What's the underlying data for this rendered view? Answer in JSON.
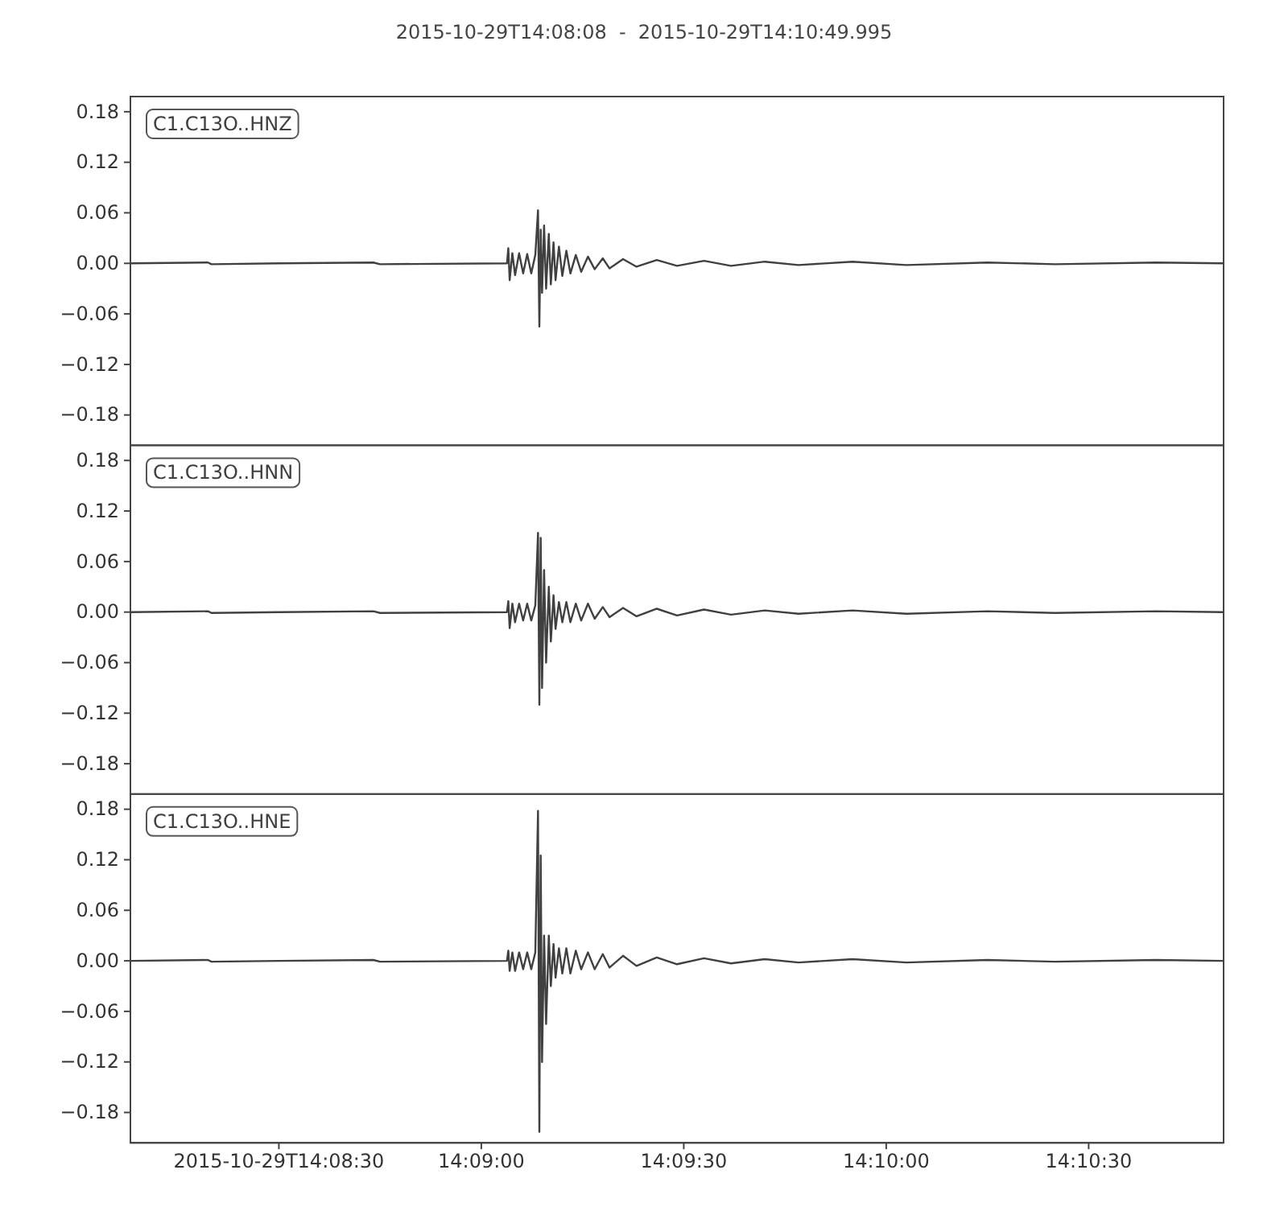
{
  "chart_data": [
    {
      "type": "line",
      "title": "2015-10-29T14:08:08  -  2015-10-29T14:10:49.995",
      "legend": "top left",
      "tick_labels": "y",
      "x": [
        "2015-10-29T14:08:08.000",
        "2015-10-29T14:08:19.500",
        "2015-10-29T14:08:20.000",
        "2015-10-29T14:08:30.000",
        "2015-10-29T14:08:44.000",
        "2015-10-29T14:08:45.000",
        "2015-10-29T14:09:03.800",
        "2015-10-29T14:09:04.000",
        "2015-10-29T14:09:04.200",
        "2015-10-29T14:09:04.600",
        "2015-10-29T14:09:05.000",
        "2015-10-29T14:09:05.600",
        "2015-10-29T14:09:06.200",
        "2015-10-29T14:09:06.800",
        "2015-10-29T14:09:07.400",
        "2015-10-29T14:09:08.000",
        "2015-10-29T14:09:08.400",
        "2015-10-29T14:09:08.600",
        "2015-10-29T14:09:08.800",
        "2015-10-29T14:09:09.000",
        "2015-10-29T14:09:09.300",
        "2015-10-29T14:09:09.600",
        "2015-10-29T14:09:10.000",
        "2015-10-29T14:09:10.300",
        "2015-10-29T14:09:10.700",
        "2015-10-29T14:09:11.000",
        "2015-10-29T14:09:11.500",
        "2015-10-29T14:09:12.000",
        "2015-10-29T14:09:12.600",
        "2015-10-29T14:09:13.200",
        "2015-10-29T14:09:14.000",
        "2015-10-29T14:09:14.800",
        "2015-10-29T14:09:15.800",
        "2015-10-29T14:09:16.800",
        "2015-10-29T14:09:18.000",
        "2015-10-29T14:09:19.000",
        "2015-10-29T14:09:21.000",
        "2015-10-29T14:09:23.000",
        "2015-10-29T14:09:26.000",
        "2015-10-29T14:09:29.000",
        "2015-10-29T14:09:33.000",
        "2015-10-29T14:09:37.000",
        "2015-10-29T14:09:42.000",
        "2015-10-29T14:09:47.000",
        "2015-10-29T14:09:55.000",
        "2015-10-29T14:10:03.000",
        "2015-10-29T14:10:15.000",
        "2015-10-29T14:10:25.000",
        "2015-10-29T14:10:40.000",
        "2015-10-29T14:10:49.995"
      ],
      "series": [
        {
          "name": "C1.C13O..HNZ",
          "color": "#404040",
          "values": [
            0,
            0.001,
            -0.001,
            0,
            0.001,
            -0.001,
            0,
            0.018,
            -0.02,
            0.012,
            -0.014,
            0.012,
            -0.012,
            0.011,
            -0.012,
            0.01,
            0.063,
            -0.075,
            0.04,
            -0.035,
            0.045,
            -0.03,
            0.035,
            -0.025,
            0.025,
            -0.02,
            0.02,
            -0.015,
            0.015,
            -0.012,
            0.01,
            -0.01,
            0.008,
            -0.007,
            0.006,
            -0.006,
            0.005,
            -0.004,
            0.004,
            -0.003,
            0.003,
            -0.003,
            0.002,
            -0.002,
            0.002,
            -0.002,
            0.001,
            -0.001,
            0.001,
            0
          ]
        }
      ],
      "ylim": [
        -0.216,
        0.198
      ],
      "yticks": [
        {
          "value": -0.18,
          "label": "−0.18"
        },
        {
          "value": -0.12,
          "label": "−0.12"
        },
        {
          "value": -0.06,
          "label": "−0.06"
        },
        {
          "value": 0,
          "label": "0.00"
        },
        0.06,
        0.12,
        0.18
      ],
      "xlim": [
        "2015-10-29T14:08:08.000",
        "2015-10-29T14:10:49.995"
      ]
    },
    {
      "type": "line",
      "legend": "top left",
      "tick_labels": "y",
      "x": [
        "2015-10-29T14:08:08.000",
        "2015-10-29T14:08:19.500",
        "2015-10-29T14:08:20.000",
        "2015-10-29T14:08:30.000",
        "2015-10-29T14:08:44.000",
        "2015-10-29T14:08:45.000",
        "2015-10-29T14:09:03.800",
        "2015-10-29T14:09:04.000",
        "2015-10-29T14:09:04.200",
        "2015-10-29T14:09:04.600",
        "2015-10-29T14:09:05.000",
        "2015-10-29T14:09:05.600",
        "2015-10-29T14:09:06.200",
        "2015-10-29T14:09:06.800",
        "2015-10-29T14:09:07.400",
        "2015-10-29T14:09:08.000",
        "2015-10-29T14:09:08.400",
        "2015-10-29T14:09:08.600",
        "2015-10-29T14:09:08.800",
        "2015-10-29T14:09:09.000",
        "2015-10-29T14:09:09.300",
        "2015-10-29T14:09:09.600",
        "2015-10-29T14:09:10.000",
        "2015-10-29T14:09:10.300",
        "2015-10-29T14:09:10.700",
        "2015-10-29T14:09:11.000",
        "2015-10-29T14:09:11.500",
        "2015-10-29T14:09:12.000",
        "2015-10-29T14:09:12.600",
        "2015-10-29T14:09:13.200",
        "2015-10-29T14:09:14.000",
        "2015-10-29T14:09:14.800",
        "2015-10-29T14:09:15.800",
        "2015-10-29T14:09:16.800",
        "2015-10-29T14:09:18.000",
        "2015-10-29T14:09:19.000",
        "2015-10-29T14:09:21.000",
        "2015-10-29T14:09:23.000",
        "2015-10-29T14:09:26.000",
        "2015-10-29T14:09:29.000",
        "2015-10-29T14:09:33.000",
        "2015-10-29T14:09:37.000",
        "2015-10-29T14:09:42.000",
        "2015-10-29T14:09:47.000",
        "2015-10-29T14:09:55.000",
        "2015-10-29T14:10:03.000",
        "2015-10-29T14:10:15.000",
        "2015-10-29T14:10:25.000",
        "2015-10-29T14:10:40.000",
        "2015-10-29T14:10:49.995"
      ],
      "series": [
        {
          "name": "C1.C13O..HNN",
          "color": "#404040",
          "values": [
            0,
            0.001,
            -0.001,
            0,
            0.001,
            -0.001,
            0,
            0.013,
            -0.019,
            0.01,
            -0.012,
            0.01,
            -0.01,
            0.01,
            -0.01,
            0.008,
            0.094,
            -0.11,
            0.088,
            -0.09,
            0.05,
            -0.06,
            0.03,
            -0.035,
            0.02,
            -0.02,
            0.012,
            -0.012,
            0.012,
            -0.012,
            0.01,
            -0.01,
            0.01,
            -0.008,
            0.006,
            -0.006,
            0.005,
            -0.005,
            0.004,
            -0.004,
            0.003,
            -0.003,
            0.002,
            -0.002,
            0.002,
            -0.002,
            0.001,
            -0.001,
            0.001,
            0
          ]
        }
      ],
      "ylim": [
        -0.216,
        0.198
      ],
      "yticks": [
        {
          "value": -0.18,
          "label": "−0.18"
        },
        {
          "value": -0.12,
          "label": "−0.12"
        },
        {
          "value": -0.06,
          "label": "−0.06"
        },
        {
          "value": 0,
          "label": "0.00"
        },
        0.06,
        0.12,
        0.18
      ],
      "xlim": [
        "2015-10-29T14:08:08.000",
        "2015-10-29T14:10:49.995"
      ]
    },
    {
      "type": "line",
      "legend": "top left",
      "x": [
        "2015-10-29T14:08:08.000",
        "2015-10-29T14:08:19.500",
        "2015-10-29T14:08:20.000",
        "2015-10-29T14:08:30.000",
        "2015-10-29T14:08:44.000",
        "2015-10-29T14:08:45.000",
        "2015-10-29T14:09:03.800",
        "2015-10-29T14:09:04.000",
        "2015-10-29T14:09:04.200",
        "2015-10-29T14:09:04.600",
        "2015-10-29T14:09:05.000",
        "2015-10-29T14:09:05.600",
        "2015-10-29T14:09:06.200",
        "2015-10-29T14:09:06.800",
        "2015-10-29T14:09:07.400",
        "2015-10-29T14:09:08.000",
        "2015-10-29T14:09:08.400",
        "2015-10-29T14:09:08.600",
        "2015-10-29T14:09:08.800",
        "2015-10-29T14:09:09.000",
        "2015-10-29T14:09:09.300",
        "2015-10-29T14:09:09.600",
        "2015-10-29T14:09:10.000",
        "2015-10-29T14:09:10.300",
        "2015-10-29T14:09:10.700",
        "2015-10-29T14:09:11.000",
        "2015-10-29T14:09:11.500",
        "2015-10-29T14:09:12.000",
        "2015-10-29T14:09:12.600",
        "2015-10-29T14:09:13.200",
        "2015-10-29T14:09:14.000",
        "2015-10-29T14:09:14.800",
        "2015-10-29T14:09:15.800",
        "2015-10-29T14:09:16.800",
        "2015-10-29T14:09:18.000",
        "2015-10-29T14:09:19.000",
        "2015-10-29T14:09:21.000",
        "2015-10-29T14:09:23.000",
        "2015-10-29T14:09:26.000",
        "2015-10-29T14:09:29.000",
        "2015-10-29T14:09:33.000",
        "2015-10-29T14:09:37.000",
        "2015-10-29T14:09:42.000",
        "2015-10-29T14:09:47.000",
        "2015-10-29T14:09:55.000",
        "2015-10-29T14:10:03.000",
        "2015-10-29T14:10:15.000",
        "2015-10-29T14:10:25.000",
        "2015-10-29T14:10:40.000",
        "2015-10-29T14:10:49.995"
      ],
      "series": [
        {
          "name": "C1.C13O..HNE",
          "color": "#404040",
          "values": [
            0,
            0.001,
            -0.001,
            0,
            0.001,
            -0.001,
            0,
            0.012,
            -0.012,
            0.01,
            -0.012,
            0.01,
            -0.01,
            0.01,
            -0.01,
            0.01,
            0.178,
            -0.203,
            0.125,
            -0.12,
            0.03,
            -0.075,
            0.03,
            -0.03,
            0.02,
            -0.02,
            0.015,
            -0.015,
            0.015,
            -0.015,
            0.012,
            -0.01,
            0.01,
            -0.01,
            0.008,
            -0.008,
            0.006,
            -0.006,
            0.004,
            -0.004,
            0.003,
            -0.003,
            0.002,
            -0.002,
            0.002,
            -0.002,
            0.001,
            -0.001,
            0.001,
            0
          ]
        }
      ],
      "ylim": [
        -0.216,
        0.198
      ],
      "yticks": [
        {
          "value": -0.18,
          "label": "−0.18"
        },
        {
          "value": -0.12,
          "label": "−0.12"
        },
        {
          "value": -0.06,
          "label": "−0.06"
        },
        {
          "value": 0,
          "label": "0.00"
        },
        0.06,
        0.12,
        0.18
      ],
      "xlim": [
        "2015-10-29T14:08:08.000",
        "2015-10-29T14:10:49.995"
      ],
      "xticks": [
        {
          "value": "2015-10-29T14:08:30.000",
          "label": "2015-10-29T14:08:30"
        },
        {
          "value": "2015-10-29T14:09:00.000",
          "label": "14:09:00"
        },
        {
          "value": "2015-10-29T14:09:30.000",
          "label": "14:09:30"
        },
        {
          "value": "2015-10-29T14:10:00.000",
          "label": "14:10:00"
        },
        {
          "value": "2015-10-29T14:10:30.000",
          "label": "14:10:30"
        }
      ]
    }
  ]
}
